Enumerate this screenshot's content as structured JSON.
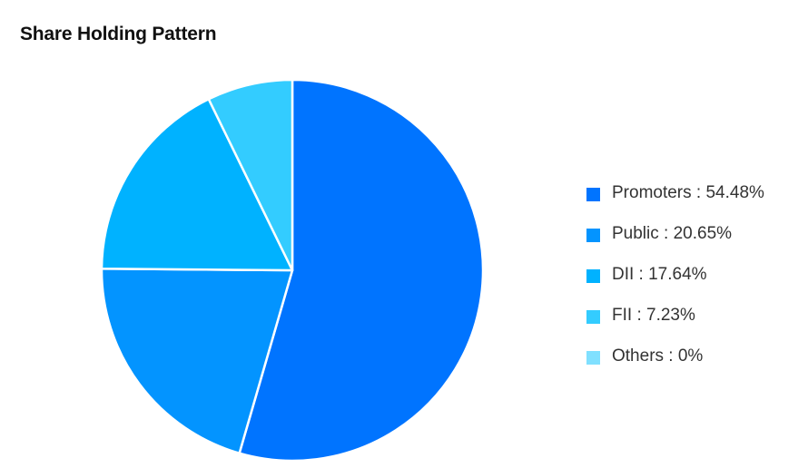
{
  "chart_data": {
    "type": "pie",
    "title": "Share Holding Pattern",
    "slices": [
      {
        "label": "Promoters",
        "value": 54.48,
        "color": "#0074FF",
        "legend": "Promoters : 54.48%"
      },
      {
        "label": "Public",
        "value": 20.65,
        "color": "#0394FF",
        "legend": "Public : 20.65%"
      },
      {
        "label": "DII",
        "value": 17.64,
        "color": "#00B2FF",
        "legend": "DII : 17.64%"
      },
      {
        "label": "FII",
        "value": 7.23,
        "color": "#33CCFF",
        "legend": "FII : 7.23%"
      },
      {
        "label": "Others",
        "value": 0,
        "color": "#80E0FF",
        "legend": "Others : 0%"
      }
    ],
    "legend_position": "right"
  }
}
